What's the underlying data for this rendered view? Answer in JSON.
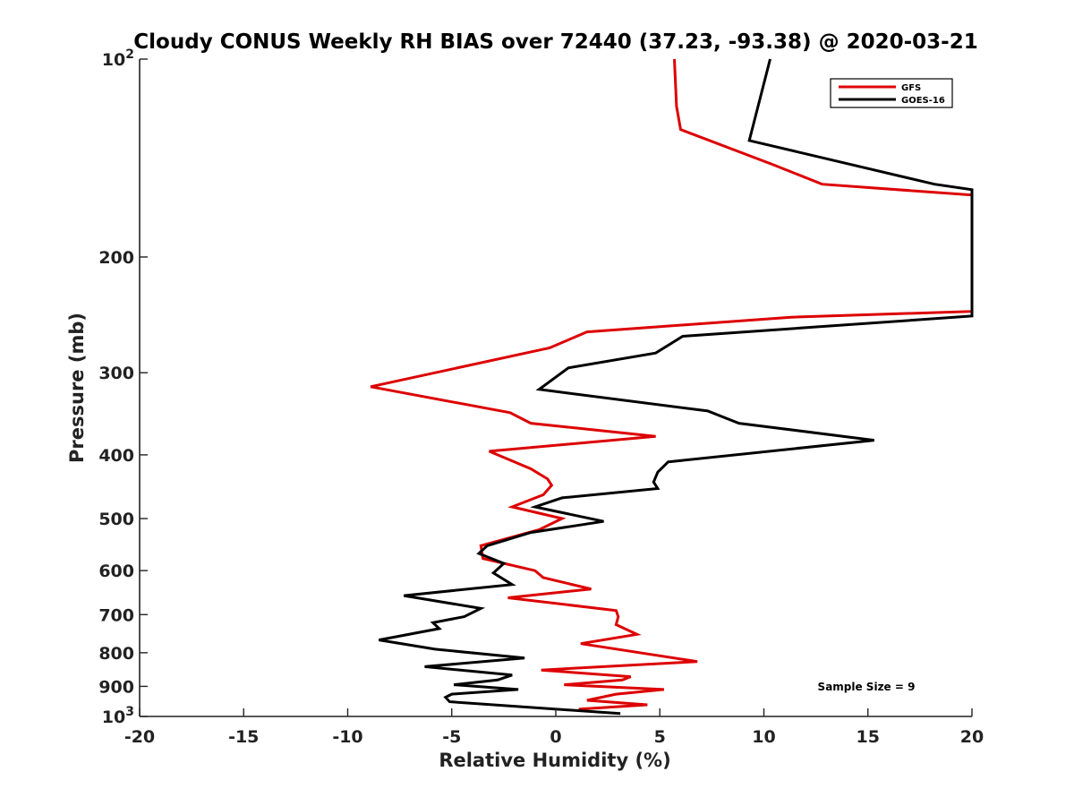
{
  "chart_data": {
    "type": "line",
    "title": "Cloudy CONUS Weekly RH BIAS over 72440 (37.23, -93.38) @ 2020-03-21",
    "xlabel": "Relative Humidity (%)",
    "ylabel": "Pressure (mb)",
    "xlim": [
      -20,
      20
    ],
    "ylim": [
      1000,
      100
    ],
    "y_scale": "log",
    "y_reversed": true,
    "grid": false,
    "x_ticks": [
      -20,
      -15,
      -10,
      -5,
      0,
      5,
      10,
      15,
      20
    ],
    "x_tick_labels": [
      "-20",
      "-15",
      "-10",
      "-5",
      "0",
      "5",
      "10",
      "15",
      "20"
    ],
    "y_ticks": [
      100,
      200,
      300,
      400,
      500,
      600,
      700,
      800,
      900,
      1000
    ],
    "y_tick_labels": [
      {
        "base": "10",
        "exp": "2"
      },
      {
        "base": "200",
        "exp": ""
      },
      {
        "base": "300",
        "exp": ""
      },
      {
        "base": "400",
        "exp": ""
      },
      {
        "base": "500",
        "exp": ""
      },
      {
        "base": "600",
        "exp": ""
      },
      {
        "base": "700",
        "exp": ""
      },
      {
        "base": "800",
        "exp": ""
      },
      {
        "base": "900",
        "exp": ""
      },
      {
        "base": "10",
        "exp": "3"
      }
    ],
    "legend_position": "top-right",
    "annotation": "Sample Size = 9",
    "series": [
      {
        "name": "GFS",
        "color": "#dd0000",
        "points": [
          [
            1.1,
            975
          ],
          [
            4.4,
            960
          ],
          [
            1.5,
            945
          ],
          [
            2.9,
            925
          ],
          [
            5.2,
            910
          ],
          [
            0.4,
            895
          ],
          [
            3.2,
            880
          ],
          [
            3.6,
            870
          ],
          [
            -0.7,
            850
          ],
          [
            6.8,
            825
          ],
          [
            1.2,
            775
          ],
          [
            3.9,
            750
          ],
          [
            2.9,
            725
          ],
          [
            3.0,
            705
          ],
          [
            2.9,
            690
          ],
          [
            -2.3,
            660
          ],
          [
            1.7,
            640
          ],
          [
            -0.6,
            615
          ],
          [
            -1.0,
            600
          ],
          [
            -3.5,
            575
          ],
          [
            -3.6,
            550
          ],
          [
            -0.8,
            520
          ],
          [
            0.3,
            500
          ],
          [
            -2.1,
            480
          ],
          [
            -0.6,
            460
          ],
          [
            -0.2,
            445
          ],
          [
            -0.4,
            435
          ],
          [
            -1.2,
            420
          ],
          [
            -3.2,
            395
          ],
          [
            4.8,
            375
          ],
          [
            -1.2,
            358
          ],
          [
            -2.2,
            345
          ],
          [
            -8.9,
            315
          ],
          [
            -0.3,
            275
          ],
          [
            1.5,
            260
          ],
          [
            11.3,
            247
          ],
          [
            20,
            242
          ],
          [
            20,
            161
          ],
          [
            12.8,
            155
          ],
          [
            10.5,
            145
          ],
          [
            6.0,
            128
          ],
          [
            5.8,
            118
          ],
          [
            5.7,
            100
          ]
        ]
      },
      {
        "name": "GOES-16",
        "color": "#000000",
        "points": [
          [
            3.1,
            990
          ],
          [
            -5.1,
            950
          ],
          [
            -5.3,
            935
          ],
          [
            -5.0,
            925
          ],
          [
            -1.8,
            910
          ],
          [
            -4.9,
            895
          ],
          [
            -2.8,
            880
          ],
          [
            -2.1,
            865
          ],
          [
            -6.3,
            840
          ],
          [
            -1.5,
            815
          ],
          [
            -5.8,
            790
          ],
          [
            -8.5,
            765
          ],
          [
            -5.6,
            735
          ],
          [
            -5.9,
            720
          ],
          [
            -4.4,
            705
          ],
          [
            -3.6,
            685
          ],
          [
            -7.3,
            655
          ],
          [
            -2.1,
            630
          ],
          [
            -3.0,
            605
          ],
          [
            -2.5,
            585
          ],
          [
            -3.7,
            565
          ],
          [
            -3.3,
            550
          ],
          [
            -1.2,
            525
          ],
          [
            2.3,
            505
          ],
          [
            -1.0,
            480
          ],
          [
            0.3,
            465
          ],
          [
            4.9,
            450
          ],
          [
            4.7,
            440
          ],
          [
            4.9,
            425
          ],
          [
            5.4,
            410
          ],
          [
            15.3,
            380
          ],
          [
            8.8,
            358
          ],
          [
            7.3,
            343
          ],
          [
            -0.8,
            318
          ],
          [
            0.6,
            295
          ],
          [
            4.8,
            280
          ],
          [
            6.1,
            264
          ],
          [
            20,
            246
          ],
          [
            20,
            158
          ],
          [
            18.2,
            155
          ],
          [
            9.3,
            133
          ],
          [
            10.3,
            100
          ]
        ]
      }
    ]
  }
}
